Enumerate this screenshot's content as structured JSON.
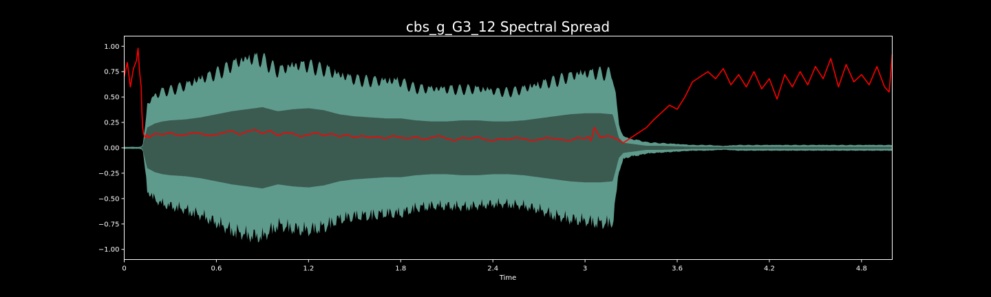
{
  "chart_data": {
    "type": "line",
    "title": "cbs_g_G3_12 Spectral Spread",
    "xlabel": "Time",
    "ylabel": "",
    "xlim": [
      0,
      5.0
    ],
    "ylim": [
      -1.1,
      1.1
    ],
    "grid": false,
    "background": "#000000",
    "colors": {
      "text": "#ffffff",
      "waveform_outer": "#5f9b8c",
      "waveform_inner": "#3b5a50",
      "spread_line": "#ff0000"
    },
    "x_ticks": [
      {
        "value": 0,
        "label": "0"
      },
      {
        "value": 0.6,
        "label": "0.6"
      },
      {
        "value": 1.2,
        "label": "1.2"
      },
      {
        "value": 1.8,
        "label": "1.8"
      },
      {
        "value": 2.4,
        "label": "2.4"
      },
      {
        "value": 3.0,
        "label": "3"
      },
      {
        "value": 3.6,
        "label": "3.6"
      },
      {
        "value": 4.2,
        "label": "4.2"
      },
      {
        "value": 4.8,
        "label": "4.8"
      }
    ],
    "y_ticks": [
      {
        "value": 1.0,
        "label": "1.00"
      },
      {
        "value": 0.75,
        "label": "0.75"
      },
      {
        "value": 0.5,
        "label": "0.50"
      },
      {
        "value": 0.25,
        "label": "0.25"
      },
      {
        "value": 0.0,
        "label": "0.00"
      },
      {
        "value": -0.25,
        "label": "−0.25"
      },
      {
        "value": -0.5,
        "label": "−0.50"
      },
      {
        "value": -0.75,
        "label": "−0.75"
      },
      {
        "value": -1.0,
        "label": "−1.00"
      }
    ],
    "waveform_envelope": {
      "x": [
        0,
        0.1,
        0.12,
        0.13,
        0.15,
        0.2,
        0.25,
        0.3,
        0.4,
        0.5,
        0.6,
        0.7,
        0.8,
        0.9,
        1.0,
        1.1,
        1.2,
        1.3,
        1.4,
        1.5,
        1.6,
        1.7,
        1.8,
        1.9,
        2.0,
        2.1,
        2.2,
        2.3,
        2.4,
        2.5,
        2.6,
        2.7,
        2.8,
        2.9,
        3.0,
        3.1,
        3.18,
        3.2,
        3.22,
        3.25,
        3.3,
        3.35,
        3.4,
        3.5,
        3.6,
        3.7,
        3.8,
        3.9,
        4.0,
        4.2,
        4.4,
        4.6,
        4.8,
        5.0
      ],
      "outer": [
        0.01,
        0.01,
        0.02,
        0.15,
        0.45,
        0.55,
        0.6,
        0.62,
        0.66,
        0.72,
        0.8,
        0.88,
        0.93,
        0.95,
        0.82,
        0.86,
        0.88,
        0.84,
        0.76,
        0.73,
        0.72,
        0.7,
        0.7,
        0.64,
        0.62,
        0.62,
        0.63,
        0.62,
        0.6,
        0.6,
        0.62,
        0.66,
        0.72,
        0.76,
        0.78,
        0.8,
        0.8,
        0.55,
        0.25,
        0.12,
        0.09,
        0.08,
        0.06,
        0.05,
        0.04,
        0.03,
        0.03,
        0.02,
        0.03,
        0.03,
        0.03,
        0.03,
        0.03,
        0.03
      ],
      "inner": [
        0.0,
        0.0,
        0.01,
        0.08,
        0.2,
        0.24,
        0.26,
        0.27,
        0.28,
        0.3,
        0.33,
        0.36,
        0.38,
        0.4,
        0.36,
        0.38,
        0.39,
        0.37,
        0.33,
        0.31,
        0.3,
        0.29,
        0.29,
        0.27,
        0.26,
        0.26,
        0.27,
        0.27,
        0.26,
        0.26,
        0.27,
        0.29,
        0.31,
        0.33,
        0.34,
        0.34,
        0.33,
        0.22,
        0.1,
        0.05,
        0.04,
        0.03,
        0.02,
        0.02,
        0.015,
        0.01,
        0.01,
        0.01,
        0.01,
        0.01,
        0.01,
        0.01,
        0.01,
        0.01
      ]
    },
    "series": [
      {
        "x": [
          0,
          0.02,
          0.04,
          0.06,
          0.08,
          0.09,
          0.1,
          0.11,
          0.115,
          0.12,
          0.125,
          0.13,
          0.14,
          0.15,
          0.16,
          0.18,
          0.2,
          0.25,
          0.3,
          0.35,
          0.4,
          0.45,
          0.5,
          0.55,
          0.6,
          0.65,
          0.7,
          0.75,
          0.8,
          0.85,
          0.9,
          0.95,
          1.0,
          1.05,
          1.1,
          1.15,
          1.2,
          1.25,
          1.3,
          1.35,
          1.4,
          1.45,
          1.5,
          1.55,
          1.6,
          1.65,
          1.7,
          1.75,
          1.8,
          1.85,
          1.9,
          1.95,
          2.0,
          2.05,
          2.1,
          2.15,
          2.2,
          2.25,
          2.3,
          2.35,
          2.4,
          2.45,
          2.5,
          2.55,
          2.6,
          2.65,
          2.7,
          2.75,
          2.8,
          2.85,
          2.9,
          2.95,
          3.0,
          3.02,
          3.04,
          3.06,
          3.1,
          3.15,
          3.2,
          3.25,
          3.3,
          3.35,
          3.4,
          3.45,
          3.5,
          3.55,
          3.6,
          3.65,
          3.7,
          3.75,
          3.8,
          3.85,
          3.9,
          3.95,
          4.0,
          4.05,
          4.1,
          4.15,
          4.2,
          4.25,
          4.3,
          4.35,
          4.4,
          4.45,
          4.5,
          4.55,
          4.6,
          4.65,
          4.7,
          4.75,
          4.8,
          4.85,
          4.9,
          4.95,
          4.98,
          5.0
        ],
        "values": [
          0.7,
          0.84,
          0.6,
          0.78,
          0.86,
          0.98,
          0.75,
          0.6,
          0.35,
          0.2,
          0.15,
          0.12,
          0.1,
          0.13,
          0.1,
          0.12,
          0.14,
          0.13,
          0.15,
          0.12,
          0.13,
          0.15,
          0.14,
          0.12,
          0.13,
          0.15,
          0.17,
          0.13,
          0.16,
          0.18,
          0.14,
          0.17,
          0.12,
          0.15,
          0.14,
          0.11,
          0.13,
          0.15,
          0.12,
          0.14,
          0.11,
          0.13,
          0.1,
          0.12,
          0.1,
          0.11,
          0.09,
          0.12,
          0.1,
          0.09,
          0.11,
          0.08,
          0.1,
          0.12,
          0.09,
          0.07,
          0.1,
          0.09,
          0.11,
          0.08,
          0.07,
          0.09,
          0.08,
          0.1,
          0.09,
          0.07,
          0.08,
          0.1,
          0.09,
          0.08,
          0.07,
          0.1,
          0.09,
          0.11,
          0.07,
          0.2,
          0.1,
          0.12,
          0.09,
          0.05,
          0.1,
          0.15,
          0.2,
          0.28,
          0.35,
          0.42,
          0.38,
          0.5,
          0.65,
          0.7,
          0.75,
          0.68,
          0.78,
          0.62,
          0.72,
          0.6,
          0.75,
          0.58,
          0.68,
          0.48,
          0.72,
          0.6,
          0.75,
          0.62,
          0.8,
          0.68,
          0.88,
          0.6,
          0.82,
          0.65,
          0.72,
          0.62,
          0.8,
          0.6,
          0.55,
          0.92
        ]
      }
    ]
  }
}
